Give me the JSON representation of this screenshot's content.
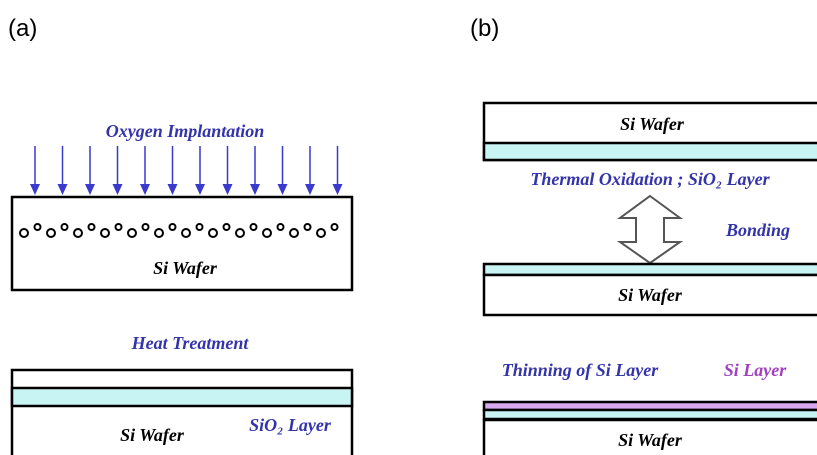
{
  "panel_a": {
    "label": "(a)",
    "step1": "Oxygen Implantation",
    "wafer1": "Si Wafer",
    "step2": "Heat Treatment",
    "wafer2": "Si Wafer",
    "oxide": "SiO₂ Layer"
  },
  "panel_b": {
    "label": "(b)",
    "wafer1": "Si Wafer",
    "step1": "Thermal Oxidation ; SiO₂ Layer",
    "bonding": "Bonding",
    "wafer2": "Si Wafer",
    "step2": "Thinning of Si Layer",
    "si_layer": "Si Layer",
    "wafer3": "Si Wafer"
  }
}
